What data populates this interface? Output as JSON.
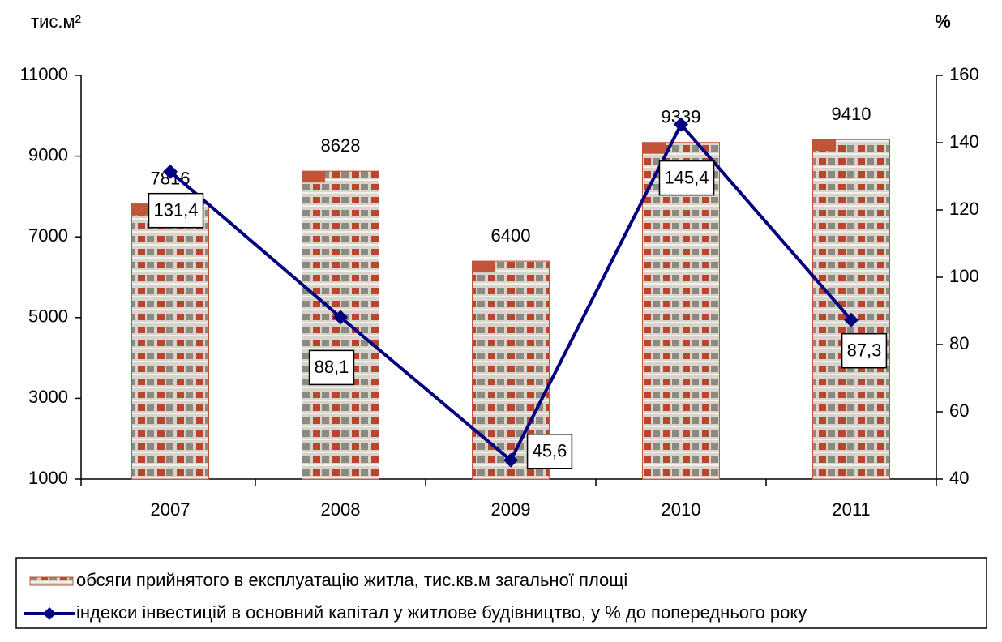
{
  "chart_data": {
    "type": "bar",
    "y_label": "тис.м²",
    "y2_label": "%",
    "categories": [
      "2007",
      "2008",
      "2009",
      "2010",
      "2011"
    ],
    "ylim": [
      1000,
      11000
    ],
    "yticks": [
      1000,
      3000,
      5000,
      7000,
      9000,
      11000
    ],
    "y2lim": [
      40,
      160
    ],
    "y2ticks": [
      40,
      60,
      80,
      100,
      120,
      140,
      160
    ],
    "series": [
      {
        "name": "обсяги прийнятого в експлуатацію житла, тис.кв.м загальної площі",
        "type": "bar",
        "color": "#c0553a",
        "values": [
          7816,
          8628,
          6400,
          9339,
          9410
        ]
      },
      {
        "name": "індекси інвестицій в основний капітал у житлове будівництво, у % до попереднього року",
        "type": "line",
        "axis": "y2",
        "color": "#000080",
        "values": [
          131.4,
          88.1,
          45.6,
          145.4,
          87.3
        ],
        "value_labels": [
          "131,4",
          "88,1",
          "45,6",
          "145,4",
          "87,3"
        ]
      }
    ]
  }
}
